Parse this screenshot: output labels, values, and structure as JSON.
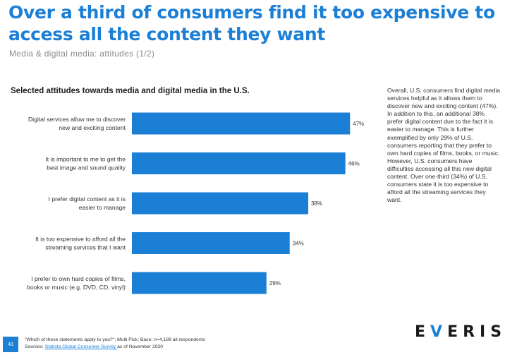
{
  "header": {
    "headline": "Over a third of consumers find it too expensive to access all the content they want",
    "subtitle": "Media & digital media: attitudes (1/2)"
  },
  "chart_data": {
    "type": "bar",
    "orientation": "horizontal",
    "title": "Selected attitudes towards media and digital media in the U.S.",
    "categories": [
      "Digital services allow me to discover new and exciting content",
      "It is important to me to get the best image and sound quality",
      "I prefer digital content as it is easier to manage",
      "It is too expensive to afford all the streaming services that I want",
      "I prefer to own hard copies of films, books or music (e.g. DVD, CD, vinyl)"
    ],
    "category_lines": [
      [
        "Digital services allow me to discover",
        "new and exciting content"
      ],
      [
        "It is important to me to get the",
        "best image and sound quality"
      ],
      [
        "I prefer digital content as it is",
        "easier to manage"
      ],
      [
        "It is too expensive to afford all the",
        "streaming services that I want"
      ],
      [
        "I prefer to own hard copies of films,",
        "books or music (e.g. DVD, CD, vinyl)"
      ]
    ],
    "values": [
      47,
      46,
      38,
      34,
      29
    ],
    "value_labels": [
      "47%",
      "46%",
      "38%",
      "34%",
      "29%"
    ],
    "unit": "%",
    "color": "#1b7fd6",
    "grid": false,
    "legend": "none"
  },
  "commentary": "Overall, U.S. consumers find digital media services helpful as it allows them to discover new and exciting content (47%). In addition to this, an additional 38% prefer digital content due to the fact it is easier to manage. This is further exemplified by only 29% of U.S. consumers reporting that they prefer to own hard copies of films, books, or music. However, U.S. consumers have difficulties accessing all this new digital content. Over one-third (34%) of U.S. consumers state it is too expensive to afford all the streaming services they want.",
  "footer": {
    "page_number": "43",
    "question_note": "\"Which of these statements apply to you?\"; Multi Pick; Base: n=4,189 all respondents",
    "sources_prefix": "Sources: ",
    "sources_link": "Statista Global Consumer Survey ",
    "sources_suffix": "as of November 2020"
  },
  "logo": {
    "part1": "E",
    "accent": "V",
    "part2": "ERISE"
  }
}
